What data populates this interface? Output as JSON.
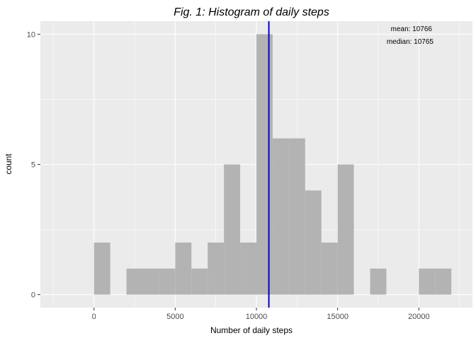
{
  "chart_data": {
    "type": "bar",
    "title": "Fig. 1: Histogram of daily steps",
    "xlabel": "Number of daily steps",
    "ylabel": "count",
    "xlim": [
      -3300,
      23300
    ],
    "ylim": [
      -0.5,
      10.5
    ],
    "x_ticks": [
      {
        "value": 0,
        "label": "0"
      },
      {
        "value": 5000,
        "label": "5000"
      },
      {
        "value": 10000,
        "label": "10000"
      },
      {
        "value": 15000,
        "label": "15000"
      },
      {
        "value": 20000,
        "label": "20000"
      }
    ],
    "y_ticks": [
      {
        "value": 0,
        "label": "0"
      },
      {
        "value": 5,
        "label": "5"
      },
      {
        "value": 10,
        "label": "10"
      }
    ],
    "bin_width": 1000,
    "bins": [
      {
        "start": 0,
        "count": 2
      },
      {
        "start": 1000,
        "count": 0
      },
      {
        "start": 2000,
        "count": 1
      },
      {
        "start": 3000,
        "count": 1
      },
      {
        "start": 4000,
        "count": 1
      },
      {
        "start": 5000,
        "count": 2
      },
      {
        "start": 6000,
        "count": 1
      },
      {
        "start": 7000,
        "count": 2
      },
      {
        "start": 8000,
        "count": 5
      },
      {
        "start": 9000,
        "count": 2
      },
      {
        "start": 10000,
        "count": 10
      },
      {
        "start": 11000,
        "count": 6
      },
      {
        "start": 12000,
        "count": 6
      },
      {
        "start": 13000,
        "count": 4
      },
      {
        "start": 14000,
        "count": 2
      },
      {
        "start": 15000,
        "count": 5
      },
      {
        "start": 16000,
        "count": 0
      },
      {
        "start": 17000,
        "count": 1
      },
      {
        "start": 18000,
        "count": 0
      },
      {
        "start": 19000,
        "count": 0
      },
      {
        "start": 20000,
        "count": 1
      },
      {
        "start": 21000,
        "count": 1
      }
    ],
    "mean_line": {
      "value": 10766,
      "color": "#0000cc"
    },
    "annotations": {
      "mean_text": "mean:  10766",
      "median_text": "median:  10765"
    },
    "grid": true,
    "colors": {
      "panel_bg": "#ebebeb",
      "grid_major": "#ffffff",
      "bar_fill": "#b3b3b3",
      "text": "#000000",
      "tick_text": "#4d4d4d"
    }
  }
}
